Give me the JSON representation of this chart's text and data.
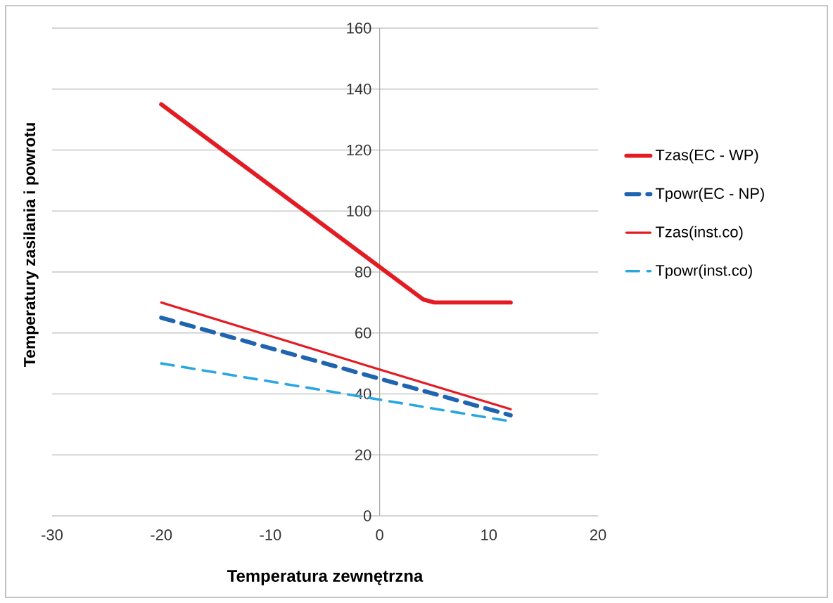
{
  "chart_data": {
    "type": "line",
    "xlabel": "Temperatura zewnętrzna",
    "ylabel": "Temperatury    zasilania i powrotu",
    "xlim": [
      -30,
      20
    ],
    "ylim": [
      0,
      160
    ],
    "xticks": [
      -30,
      -20,
      -10,
      0,
      10,
      20
    ],
    "yticks": [
      0,
      20,
      40,
      60,
      80,
      100,
      120,
      140,
      160
    ],
    "grid": "y",
    "legend": "right",
    "marker": "none",
    "series": [
      {
        "name": "Tzas(EC - WP)",
        "color": "#e31b23",
        "x": [
          -20,
          4,
          5,
          12
        ],
        "values": [
          135,
          71,
          70,
          70
        ],
        "line_style": "solid"
      },
      {
        "name": "Tpowr(EC - NP)",
        "color": "#1f64b0",
        "x": [
          -20,
          12
        ],
        "values": [
          65,
          33
        ],
        "line_style": "dashed"
      },
      {
        "name": "Tzas(inst.co)",
        "color": "#e31b23",
        "x": [
          -20,
          -10,
          0,
          12
        ],
        "values": [
          70,
          59,
          48,
          35
        ],
        "line_style": "solid"
      },
      {
        "name": "Tpowr(inst.co)",
        "color": "#2aa7e0",
        "x": [
          -20,
          12
        ],
        "values": [
          50,
          31
        ],
        "line_style": "dashed"
      }
    ]
  }
}
